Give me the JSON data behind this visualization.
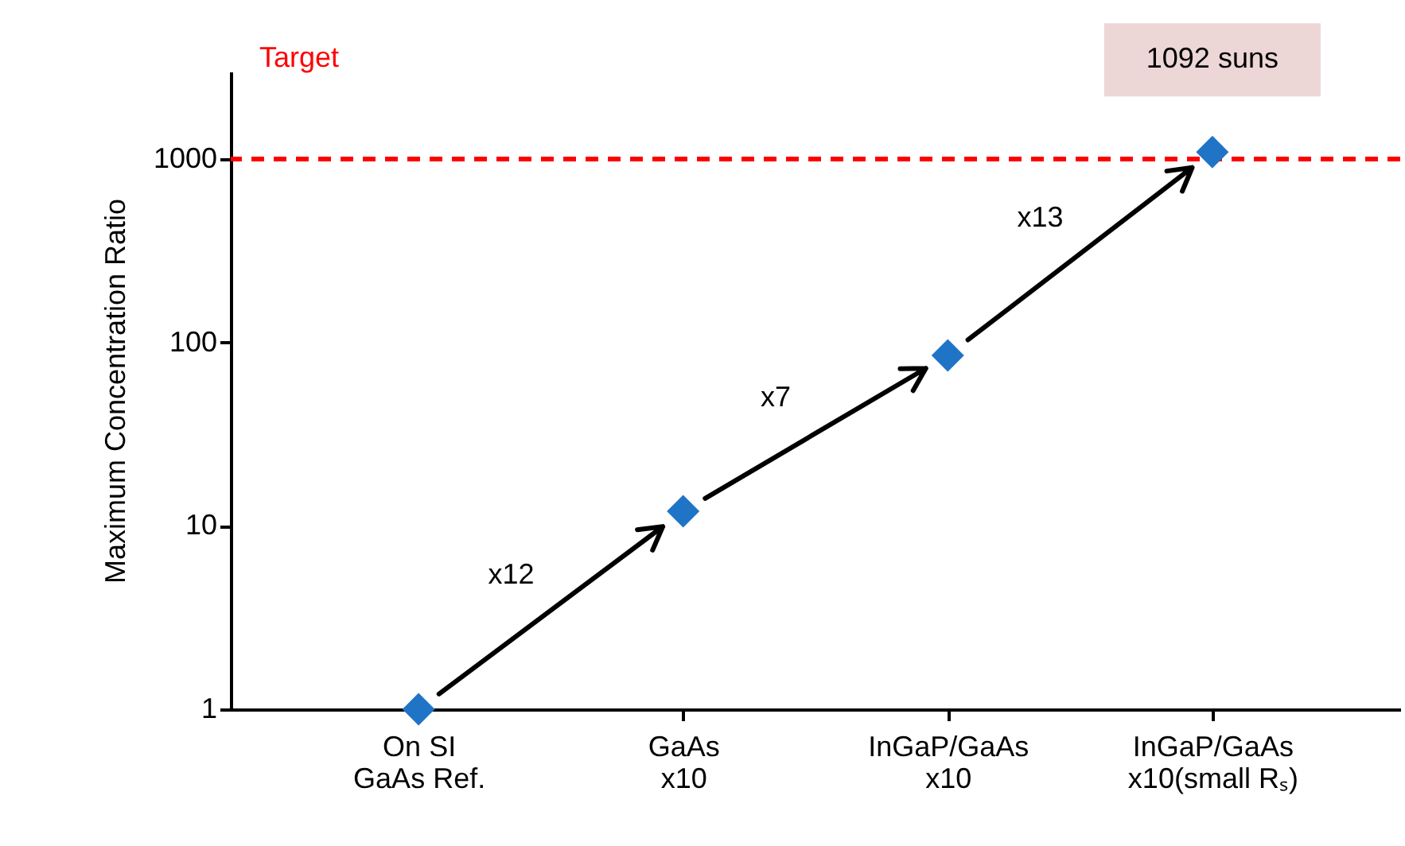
{
  "chart_data": {
    "type": "scatter",
    "ylabel": "Maximum Concentration Ratio",
    "categories": [
      "On SI\nGaAs Ref.",
      "GaAs\nx10",
      "InGaP/GaAs\nx10",
      "InGaP/GaAs\nx10(small Rₛ)"
    ],
    "values": [
      1,
      12,
      85,
      1092
    ],
    "color": "#1f74c6",
    "marker": "diamond",
    "value_labels": [
      null,
      null,
      null,
      "1092 suns"
    ],
    "annotations": [
      "x12",
      "x7",
      "x13"
    ],
    "ref_lines": [
      {
        "axis": "y",
        "value": 1000,
        "label": "Target",
        "color": "#ff0000",
        "line_style": "dashed"
      }
    ],
    "log": "y",
    "ylim": [
      1,
      3000
    ],
    "yticks": [
      1,
      10,
      100,
      1000
    ],
    "grid": false,
    "legend": false
  }
}
